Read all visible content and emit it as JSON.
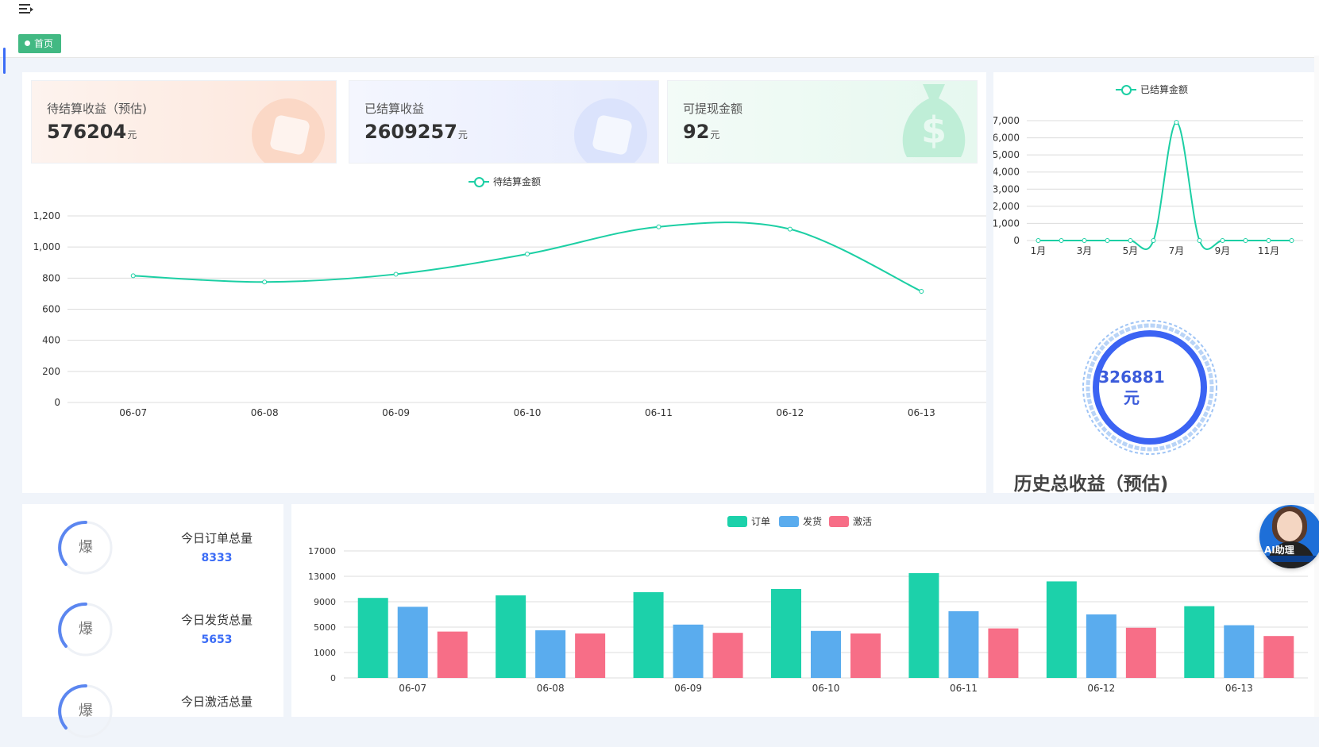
{
  "tabs": [
    {
      "label": "首页",
      "active": true
    }
  ],
  "stats": [
    {
      "label": "待结算收益（预估)",
      "value": "576204",
      "unit": "元"
    },
    {
      "label": "已结算收益",
      "value": "2609257",
      "unit": "元"
    },
    {
      "label": "可提现金额",
      "value": "92",
      "unit": "元"
    }
  ],
  "history": {
    "value": "326881",
    "unit": "元",
    "title": "历史总收益（预估)"
  },
  "today": [
    {
      "icon_char": "爆",
      "label": "今日订单总量",
      "value": "8333"
    },
    {
      "icon_char": "爆",
      "label": "今日发货总量",
      "value": "5653"
    },
    {
      "icon_char": "爆",
      "label": "今日激活总量",
      "value": ""
    }
  ],
  "ai_assistant": {
    "label": "AI助理"
  },
  "colors": {
    "accent": "#1ccfa4",
    "order": "#1cd1aa",
    "ship": "#5aacee",
    "activate": "#f76e87",
    "tag": "#42b983",
    "primary": "#3b6cf6"
  },
  "chart_data": [
    {
      "type": "line",
      "series": [
        {
          "name": "待结算金额",
          "values": [
            815,
            775,
            825,
            955,
            1130,
            1115,
            715
          ]
        }
      ],
      "x": [
        "06-07",
        "06-08",
        "06-09",
        "06-10",
        "06-11",
        "06-12",
        "06-13"
      ],
      "ylim": [
        0,
        1200
      ],
      "yticks": [
        "0",
        "200",
        "400",
        "600",
        "800",
        "1,000",
        "1,200"
      ],
      "legend": "top-center",
      "grid": true
    },
    {
      "type": "line",
      "series": [
        {
          "name": "已结算金额",
          "values": [
            0,
            0,
            0,
            0,
            0,
            0,
            6900,
            0,
            0,
            0,
            0,
            0
          ]
        }
      ],
      "x": [
        "1月",
        "2月",
        "3月",
        "4月",
        "5月",
        "6月",
        "7月",
        "8月",
        "9月",
        "10月",
        "11月",
        "12月"
      ],
      "xticks_shown": [
        "1月",
        "3月",
        "5月",
        "7月",
        "9月",
        "11月"
      ],
      "ylim": [
        0,
        7000
      ],
      "yticks": [
        "0",
        "1,000",
        "2,000",
        "3,000",
        "4,000",
        "5,000",
        "6,000",
        "7,000"
      ],
      "legend": "top-center",
      "grid": true
    },
    {
      "type": "bar",
      "categories": [
        "06-07",
        "06-08",
        "06-09",
        "06-10",
        "06-11",
        "06-12",
        "06-13"
      ],
      "series": [
        {
          "name": "订单",
          "values": [
            9600,
            10000,
            10500,
            11000,
            13500,
            12200,
            8300
          ]
        },
        {
          "name": "发货",
          "values": [
            8200,
            4500,
            5400,
            4400,
            7500,
            7000,
            5300
          ]
        },
        {
          "name": "激活",
          "values": [
            4300,
            4000,
            4100,
            4000,
            4800,
            4900,
            3600
          ]
        }
      ],
      "ylim": [
        0,
        17000
      ],
      "yticks": [
        "0",
        "1000",
        "5000",
        "9000",
        "13000",
        "17000"
      ],
      "legend": "top-center",
      "grid": true
    }
  ]
}
